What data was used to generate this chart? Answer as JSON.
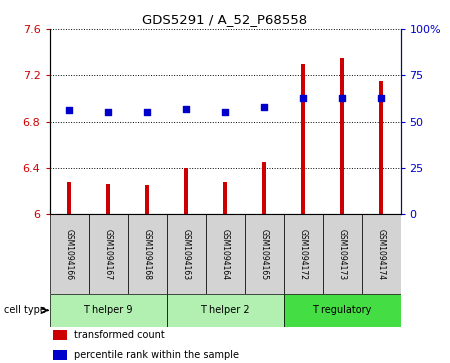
{
  "title": "GDS5291 / A_52_P68558",
  "samples": [
    "GSM1094166",
    "GSM1094167",
    "GSM1094168",
    "GSM1094163",
    "GSM1094164",
    "GSM1094165",
    "GSM1094172",
    "GSM1094173",
    "GSM1094174"
  ],
  "bar_values": [
    6.28,
    6.26,
    6.25,
    6.4,
    6.28,
    6.45,
    7.3,
    7.35,
    7.15
  ],
  "dot_values": [
    56,
    55,
    55,
    57,
    55,
    58,
    63,
    63,
    63
  ],
  "bar_color": "#cc0000",
  "dot_color": "#0000cc",
  "ylim_left": [
    6.0,
    7.6
  ],
  "ylim_right": [
    0,
    100
  ],
  "yticks_left": [
    6.0,
    6.4,
    6.8,
    7.2,
    7.6
  ],
  "yticks_right": [
    0,
    25,
    50,
    75,
    100
  ],
  "ytick_labels_left": [
    "6",
    "6.4",
    "6.8",
    "7.2",
    "7.6"
  ],
  "ytick_labels_right": [
    "0",
    "25",
    "50",
    "75",
    "100%"
  ],
  "cell_groups": [
    {
      "label": "T helper 9",
      "indices": [
        0,
        1,
        2
      ],
      "color": "#b2f0b2"
    },
    {
      "label": "T helper 2",
      "indices": [
        3,
        4,
        5
      ],
      "color": "#b2f0b2"
    },
    {
      "label": "T regulatory",
      "indices": [
        6,
        7,
        8
      ],
      "color": "#44dd44"
    }
  ],
  "legend_items": [
    {
      "label": "transformed count",
      "color": "#cc0000"
    },
    {
      "label": "percentile rank within the sample",
      "color": "#0000cc"
    }
  ],
  "cell_type_label": "cell type",
  "background_color": "#ffffff",
  "plot_bg_color": "#ffffff",
  "tick_label_color_left": "#cc0000",
  "tick_label_color_right": "#0000cc",
  "bar_base": 6.0,
  "bar_width": 0.12,
  "grid_linestyle": "dotted"
}
